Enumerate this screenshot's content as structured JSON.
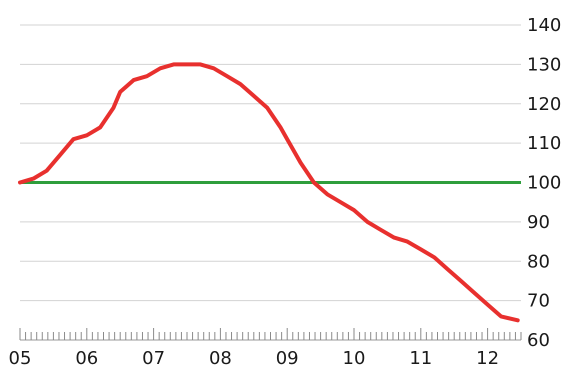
{
  "chart_data": {
    "type": "line",
    "title": "",
    "xlabel": "",
    "ylabel": "",
    "x_tick_labels": [
      "05",
      "06",
      "07",
      "08",
      "09",
      "10",
      "11",
      "12"
    ],
    "x_range": [
      2005.0,
      2012.5
    ],
    "y_ticks": [
      60,
      70,
      80,
      90,
      100,
      110,
      120,
      130,
      140
    ],
    "ylim": [
      60,
      140
    ],
    "grid": "horizontal",
    "legend": "none",
    "reference_line": {
      "value": 100,
      "color": "#2e9e3c"
    },
    "series": [
      {
        "color": "#e8302e",
        "points": [
          [
            2005.0,
            100
          ],
          [
            2005.2,
            101
          ],
          [
            2005.4,
            103
          ],
          [
            2005.6,
            107
          ],
          [
            2005.8,
            111
          ],
          [
            2006.0,
            112
          ],
          [
            2006.2,
            114
          ],
          [
            2006.4,
            119
          ],
          [
            2006.5,
            123
          ],
          [
            2006.7,
            126
          ],
          [
            2006.9,
            127
          ],
          [
            2007.1,
            129
          ],
          [
            2007.3,
            130
          ],
          [
            2007.5,
            130
          ],
          [
            2007.7,
            130
          ],
          [
            2007.9,
            129
          ],
          [
            2008.1,
            127
          ],
          [
            2008.3,
            125
          ],
          [
            2008.5,
            122
          ],
          [
            2008.7,
            119
          ],
          [
            2008.9,
            114
          ],
          [
            2009.0,
            111
          ],
          [
            2009.2,
            105
          ],
          [
            2009.4,
            100
          ],
          [
            2009.6,
            97
          ],
          [
            2009.8,
            95
          ],
          [
            2010.0,
            93
          ],
          [
            2010.2,
            90
          ],
          [
            2010.4,
            88
          ],
          [
            2010.6,
            86
          ],
          [
            2010.8,
            85
          ],
          [
            2011.0,
            83
          ],
          [
            2011.2,
            81
          ],
          [
            2011.4,
            78
          ],
          [
            2011.6,
            75
          ],
          [
            2011.8,
            72
          ],
          [
            2012.0,
            69
          ],
          [
            2012.2,
            66
          ],
          [
            2012.45,
            65
          ]
        ]
      }
    ]
  }
}
